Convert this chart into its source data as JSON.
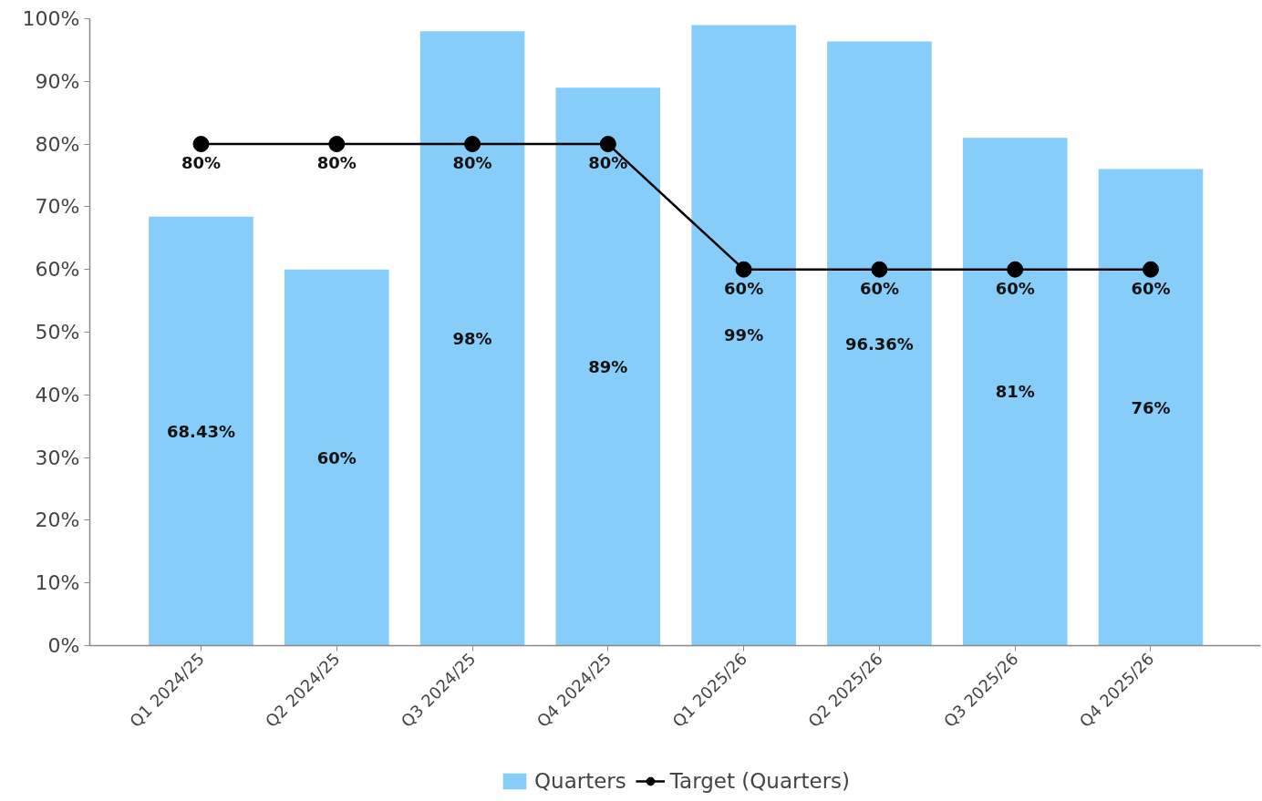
{
  "chart_data": {
    "type": "bar",
    "categories": [
      "Q1 2024/25",
      "Q2 2024/25",
      "Q3 2024/25",
      "Q4 2024/25",
      "Q1 2025/26",
      "Q2 2025/26",
      "Q3 2025/26",
      "Q4 2025/26"
    ],
    "series": [
      {
        "name": "Quarters",
        "color": "#87cdf9",
        "values": [
          68.43,
          60,
          98,
          89,
          99,
          96.36,
          81,
          76
        ],
        "value_labels": [
          "68.43%",
          "60%",
          "98%",
          "89%",
          "99%",
          "96.36%",
          "81%",
          "76%"
        ]
      },
      {
        "name": "Target (Quarters)",
        "type": "line",
        "color": "#000000",
        "values": [
          80,
          80,
          80,
          80,
          60,
          60,
          60,
          60
        ],
        "value_labels": [
          "80%",
          "80%",
          "80%",
          "80%",
          "60%",
          "60%",
          "60%",
          "60%"
        ]
      }
    ],
    "ylim": [
      0,
      100
    ],
    "yticks": [
      {
        "value": 0,
        "label": "0%"
      },
      {
        "value": 10,
        "label": "10%"
      },
      {
        "value": 20,
        "label": "20%"
      },
      {
        "value": 30,
        "label": "30%"
      },
      {
        "value": 40,
        "label": "40%"
      },
      {
        "value": 50,
        "label": "50%"
      },
      {
        "value": 60,
        "label": "60%"
      },
      {
        "value": 70,
        "label": "70%"
      },
      {
        "value": 80,
        "label": "80%"
      },
      {
        "value": 90,
        "label": "90%"
      },
      {
        "value": 100,
        "label": "100%"
      }
    ],
    "grid": false,
    "legend": "bottom",
    "marker": "circle"
  }
}
